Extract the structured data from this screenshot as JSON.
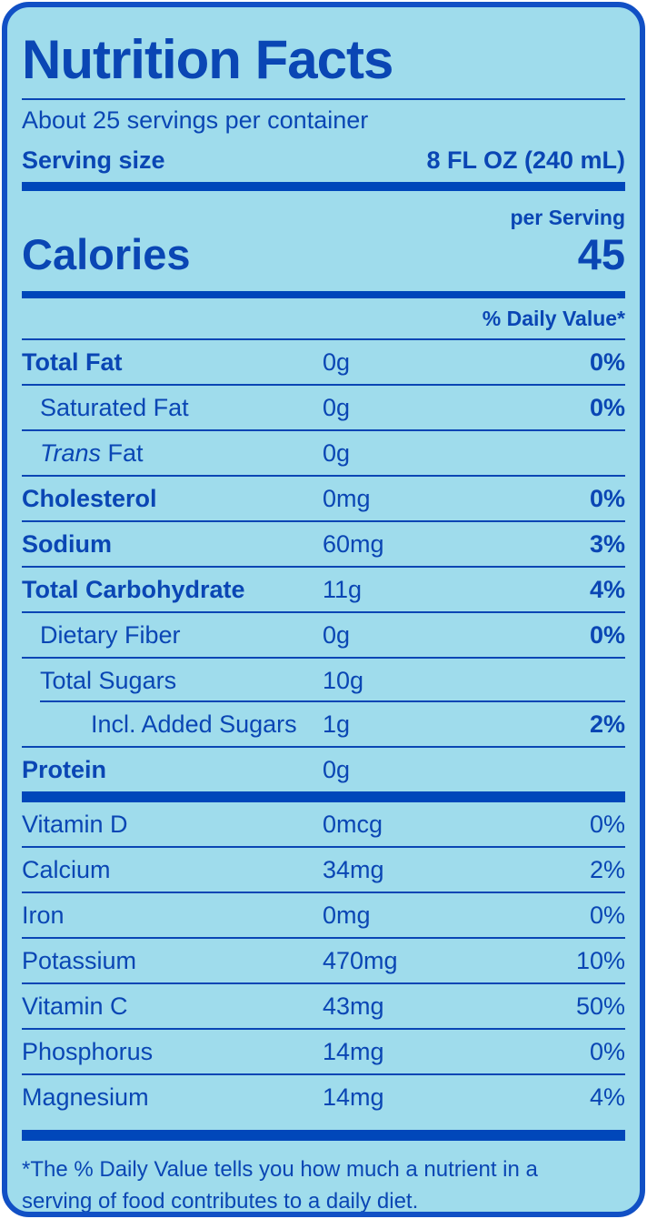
{
  "colors": {
    "label_background": "#9fdcec",
    "ink": "#0a46b4",
    "bar": "#0047ba",
    "border": "#1150c5",
    "page_background": "#ffffff"
  },
  "header": {
    "title": "Nutrition Facts",
    "servings_per_container": "About 25 servings per container",
    "serving_size_label": "Serving size",
    "serving_size_value": "8 FL OZ (240 mL)"
  },
  "calories": {
    "per_serving_label": "per Serving",
    "label": "Calories",
    "value": "45"
  },
  "daily_value_header": "% Daily Value*",
  "nutrients": [
    {
      "name": "Total Fat",
      "amount": "0g",
      "dv": "0%"
    },
    {
      "name": "Saturated Fat",
      "amount": "0g",
      "dv": "0%"
    },
    {
      "name_italic": "Trans",
      "name_rest": " Fat",
      "amount": "0g",
      "dv": ""
    },
    {
      "name": "Cholesterol",
      "amount": "0mg",
      "dv": "0%"
    },
    {
      "name": "Sodium",
      "amount": "60mg",
      "dv": "3%"
    },
    {
      "name": "Total Carbohydrate",
      "amount": "11g",
      "dv": "4%"
    },
    {
      "name": "Dietary Fiber",
      "amount": "0g",
      "dv": "0%"
    },
    {
      "name": "Total Sugars",
      "amount": "10g",
      "dv": ""
    },
    {
      "name": "Incl. Added Sugars",
      "amount": "1g",
      "dv": "2%"
    },
    {
      "name": "Protein",
      "amount": "0g",
      "dv": ""
    }
  ],
  "vitamins": [
    {
      "name": "Vitamin D",
      "amount": "0mcg",
      "dv": "0%"
    },
    {
      "name": "Calcium",
      "amount": "34mg",
      "dv": "2%"
    },
    {
      "name": "Iron",
      "amount": "0mg",
      "dv": "0%"
    },
    {
      "name": "Potassium",
      "amount": "470mg",
      "dv": "10%"
    },
    {
      "name": "Vitamin C",
      "amount": "43mg",
      "dv": "50%"
    },
    {
      "name": "Phosphorus",
      "amount": "14mg",
      "dv": "0%"
    },
    {
      "name": "Magnesium",
      "amount": "14mg",
      "dv": "4%"
    }
  ],
  "footnote": "*The % Daily Value tells you how much a nutrient in a serving of food contributes to a daily diet."
}
